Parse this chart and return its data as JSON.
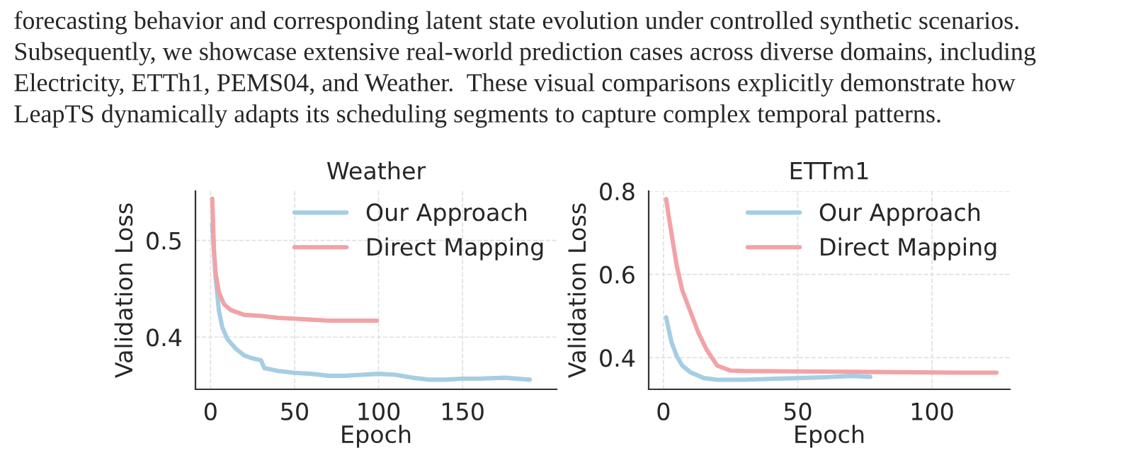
{
  "chart_data": [
    {
      "type": "line",
      "title": "Weather",
      "xlabel": "Epoch",
      "ylabel": "Validation Loss",
      "xlim": [
        -9,
        206
      ],
      "ylim": [
        0.346,
        0.551
      ],
      "xticks": [
        0,
        50,
        100,
        150
      ],
      "yticks": [
        0.4,
        0.5
      ],
      "grid": true,
      "legend": "top right",
      "annotations": [
        "forecasting behavior and corresponding latent state evolution under controlled synthetic scenarios.",
        "Subsequently, we showcase extensive real-world prediction cases across diverse domains, including",
        "Electricity, ETTh1, PEMS04, and Weather.  These visual comparisons explicitly demonstrate how",
        "LeapTS dynamically adapts its scheduling segments to capture complex temporal patterns."
      ],
      "series": [
        {
          "name": "Our Approach",
          "color": "#a6cde3",
          "x": [
            1,
            3,
            5,
            7,
            10,
            15,
            20,
            25,
            30,
            32,
            40,
            50,
            60,
            70,
            80,
            90,
            100,
            110,
            120,
            130,
            140,
            150,
            160,
            175,
            190
          ],
          "values": [
            0.517,
            0.461,
            0.427,
            0.41,
            0.398,
            0.388,
            0.381,
            0.378,
            0.376,
            0.368,
            0.365,
            0.363,
            0.362,
            0.36,
            0.36,
            0.361,
            0.362,
            0.361,
            0.358,
            0.356,
            0.356,
            0.357,
            0.357,
            0.358,
            0.356
          ]
        },
        {
          "name": "Direct Mapping",
          "color": "#f1a3a6",
          "x": [
            1,
            2,
            3,
            5,
            8,
            12,
            20,
            30,
            40,
            50,
            60,
            70,
            80,
            90,
            99
          ],
          "values": [
            0.543,
            0.49,
            0.466,
            0.446,
            0.434,
            0.428,
            0.423,
            0.422,
            0.42,
            0.419,
            0.418,
            0.417,
            0.417,
            0.417,
            0.417
          ]
        }
      ]
    },
    {
      "type": "line",
      "title": "ETTm1",
      "xlabel": "Epoch",
      "ylabel": "Validation Loss",
      "xlim": [
        -5.5,
        129
      ],
      "ylim": [
        0.324,
        0.8
      ],
      "xticks": [
        0,
        50,
        100
      ],
      "yticks": [
        0.4,
        0.6,
        0.8
      ],
      "grid": true,
      "legend": "top right",
      "series": [
        {
          "name": "Our Approach",
          "color": "#a6cde3",
          "x": [
            1,
            2,
            3,
            5,
            7,
            10,
            15,
            20,
            30,
            40,
            50,
            60,
            70,
            77
          ],
          "values": [
            0.497,
            0.466,
            0.437,
            0.403,
            0.381,
            0.365,
            0.351,
            0.347,
            0.347,
            0.349,
            0.351,
            0.353,
            0.356,
            0.354
          ]
        },
        {
          "name": "Direct Mapping",
          "color": "#f1a3a6",
          "x": [
            1,
            2,
            3,
            5,
            7,
            10,
            13,
            16,
            20,
            25,
            30,
            50,
            70,
            90,
            110,
            124
          ],
          "values": [
            0.781,
            0.738,
            0.698,
            0.619,
            0.562,
            0.511,
            0.46,
            0.42,
            0.381,
            0.369,
            0.368,
            0.367,
            0.366,
            0.365,
            0.364,
            0.364
          ]
        }
      ]
    }
  ]
}
